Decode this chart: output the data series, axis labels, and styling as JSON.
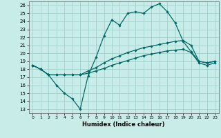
{
  "xlabel": "Humidex (Indice chaleur)",
  "xlim": [
    -0.5,
    23.5
  ],
  "ylim": [
    12.5,
    26.5
  ],
  "xticks": [
    0,
    1,
    2,
    3,
    4,
    5,
    6,
    7,
    8,
    9,
    10,
    11,
    12,
    13,
    14,
    15,
    16,
    17,
    18,
    19,
    20,
    21,
    22,
    23
  ],
  "yticks": [
    13,
    14,
    15,
    16,
    17,
    18,
    19,
    20,
    21,
    22,
    23,
    24,
    25,
    26
  ],
  "background_color": "#c8ece8",
  "grid_color": "#a0d0cc",
  "line_color": "#006868",
  "line1_x": [
    0,
    1,
    2,
    3,
    4,
    5,
    6,
    7,
    8,
    9,
    10,
    11,
    12,
    13,
    14,
    15,
    16,
    17,
    18,
    19,
    20,
    21,
    22,
    23
  ],
  "line1_y": [
    18.5,
    18.0,
    17.3,
    16.0,
    15.0,
    14.3,
    13.0,
    17.2,
    19.5,
    22.2,
    24.2,
    23.5,
    25.0,
    25.2,
    25.0,
    25.8,
    26.2,
    25.2,
    23.8,
    21.5,
    20.2,
    19.0,
    18.8,
    19.0
  ],
  "line2_x": [
    0,
    1,
    2,
    3,
    4,
    5,
    6,
    7,
    8,
    9,
    10,
    11,
    12,
    13,
    14,
    15,
    16,
    17,
    18,
    19,
    20,
    21,
    22,
    23
  ],
  "line2_y": [
    18.5,
    18.0,
    17.3,
    17.3,
    17.3,
    17.3,
    17.3,
    17.8,
    18.2,
    18.8,
    19.3,
    19.7,
    20.1,
    20.4,
    20.7,
    20.9,
    21.1,
    21.3,
    21.5,
    21.6,
    21.0,
    19.0,
    18.8,
    19.0
  ],
  "line3_x": [
    0,
    1,
    2,
    3,
    4,
    5,
    6,
    7,
    8,
    9,
    10,
    11,
    12,
    13,
    14,
    15,
    16,
    17,
    18,
    19,
    20,
    21,
    22,
    23
  ],
  "line3_y": [
    18.5,
    18.0,
    17.3,
    17.3,
    17.3,
    17.3,
    17.3,
    17.5,
    17.8,
    18.1,
    18.5,
    18.8,
    19.1,
    19.4,
    19.7,
    19.9,
    20.1,
    20.3,
    20.4,
    20.5,
    20.1,
    18.8,
    18.5,
    18.8
  ]
}
